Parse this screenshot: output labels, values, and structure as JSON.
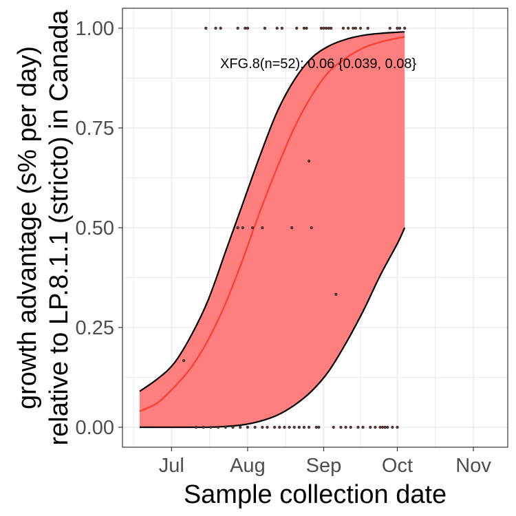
{
  "chart_data": {
    "type": "line",
    "xlabel": "Sample collection date",
    "ylabel_lines": [
      "growth advantage (s% per day)",
      "relative to LP.8.1.1 (stricto) in Canada"
    ],
    "annotation": "XFG.8(n=52): 0.06 {0.039, 0.08}",
    "x_ticks": [
      {
        "label": "Jul",
        "date": "2025-07-01"
      },
      {
        "label": "Aug",
        "date": "2025-08-01"
      },
      {
        "label": "Sep",
        "date": "2025-09-01"
      },
      {
        "label": "Oct",
        "date": "2025-10-01"
      },
      {
        "label": "Nov",
        "date": "2025-11-01"
      }
    ],
    "y_ticks": [
      {
        "label": "0.00",
        "value": 0
      },
      {
        "label": "0.25",
        "value": 0.25
      },
      {
        "label": "0.50",
        "value": 0.5
      },
      {
        "label": "0.75",
        "value": 0.75
      },
      {
        "label": "1.00",
        "value": 1
      }
    ],
    "xlim": [
      "2025-06-11",
      "2025-11-15"
    ],
    "ylim": [
      -0.05,
      1.05
    ],
    "grid": true,
    "colors": {
      "fit_line": "#ff3b30",
      "ribbon": "#ff7f7f",
      "bounds": "#000000",
      "points": "#5a3a3a",
      "panel_border": "#333333",
      "grid": "#ebebeb"
    },
    "series": [
      {
        "name": "XFG.8",
        "fit": [
          {
            "x": "2025-06-18",
            "y": 0.04
          },
          {
            "x": "2025-06-25",
            "y": 0.06
          },
          {
            "x": "2025-07-02",
            "y": 0.1
          },
          {
            "x": "2025-07-09",
            "y": 0.15
          },
          {
            "x": "2025-07-16",
            "y": 0.22
          },
          {
            "x": "2025-07-23",
            "y": 0.31
          },
          {
            "x": "2025-07-30",
            "y": 0.42
          },
          {
            "x": "2025-08-06",
            "y": 0.54
          },
          {
            "x": "2025-08-13",
            "y": 0.65
          },
          {
            "x": "2025-08-20",
            "y": 0.75
          },
          {
            "x": "2025-08-27",
            "y": 0.83
          },
          {
            "x": "2025-09-03",
            "y": 0.89
          },
          {
            "x": "2025-09-10",
            "y": 0.925
          },
          {
            "x": "2025-09-17",
            "y": 0.95
          },
          {
            "x": "2025-09-24",
            "y": 0.965
          },
          {
            "x": "2025-10-01",
            "y": 0.975
          },
          {
            "x": "2025-10-04",
            "y": 0.978
          }
        ],
        "upper": [
          {
            "x": "2025-06-18",
            "y": 0.09
          },
          {
            "x": "2025-06-25",
            "y": 0.12
          },
          {
            "x": "2025-07-02",
            "y": 0.16
          },
          {
            "x": "2025-07-09",
            "y": 0.23
          },
          {
            "x": "2025-07-16",
            "y": 0.32
          },
          {
            "x": "2025-07-23",
            "y": 0.44
          },
          {
            "x": "2025-07-30",
            "y": 0.56
          },
          {
            "x": "2025-08-06",
            "y": 0.68
          },
          {
            "x": "2025-08-13",
            "y": 0.79
          },
          {
            "x": "2025-08-20",
            "y": 0.87
          },
          {
            "x": "2025-08-27",
            "y": 0.925
          },
          {
            "x": "2025-09-03",
            "y": 0.955
          },
          {
            "x": "2025-09-10",
            "y": 0.972
          },
          {
            "x": "2025-09-17",
            "y": 0.982
          },
          {
            "x": "2025-09-24",
            "y": 0.987
          },
          {
            "x": "2025-10-01",
            "y": 0.99
          },
          {
            "x": "2025-10-04",
            "y": 0.991
          }
        ],
        "lower": [
          {
            "x": "2025-06-18",
            "y": 0.0
          },
          {
            "x": "2025-06-25",
            "y": 0.0
          },
          {
            "x": "2025-07-02",
            "y": 0.0
          },
          {
            "x": "2025-07-09",
            "y": 0.0
          },
          {
            "x": "2025-07-16",
            "y": 0.0
          },
          {
            "x": "2025-07-23",
            "y": 0.002
          },
          {
            "x": "2025-07-30",
            "y": 0.006
          },
          {
            "x": "2025-08-06",
            "y": 0.015
          },
          {
            "x": "2025-08-13",
            "y": 0.03
          },
          {
            "x": "2025-08-20",
            "y": 0.055
          },
          {
            "x": "2025-08-27",
            "y": 0.09
          },
          {
            "x": "2025-09-03",
            "y": 0.14
          },
          {
            "x": "2025-09-10",
            "y": 0.21
          },
          {
            "x": "2025-09-17",
            "y": 0.29
          },
          {
            "x": "2025-09-24",
            "y": 0.38
          },
          {
            "x": "2025-10-01",
            "y": 0.46
          },
          {
            "x": "2025-10-04",
            "y": 0.5
          }
        ],
        "observations": [
          {
            "x": "2025-07-06",
            "y": 0.167
          },
          {
            "x": "2025-07-28",
            "y": 0.5
          },
          {
            "x": "2025-07-30",
            "y": 0.5
          },
          {
            "x": "2025-08-03",
            "y": 0.5
          },
          {
            "x": "2025-08-07",
            "y": 0.5
          },
          {
            "x": "2025-08-19",
            "y": 0.5
          },
          {
            "x": "2025-08-27",
            "y": 0.5
          },
          {
            "x": "2025-08-26",
            "y": 0.667
          },
          {
            "x": "2025-09-06",
            "y": 0.333
          },
          {
            "x": "2025-07-15",
            "y": 1
          },
          {
            "x": "2025-07-19",
            "y": 1
          },
          {
            "x": "2025-07-21",
            "y": 1
          },
          {
            "x": "2025-07-28",
            "y": 1
          },
          {
            "x": "2025-07-31",
            "y": 1
          },
          {
            "x": "2025-08-01",
            "y": 1
          },
          {
            "x": "2025-08-08",
            "y": 1
          },
          {
            "x": "2025-08-13",
            "y": 1
          },
          {
            "x": "2025-08-15",
            "y": 1
          },
          {
            "x": "2025-08-21",
            "y": 1
          },
          {
            "x": "2025-08-24",
            "y": 1
          },
          {
            "x": "2025-08-25",
            "y": 1
          },
          {
            "x": "2025-08-31",
            "y": 1
          },
          {
            "x": "2025-09-01",
            "y": 1
          },
          {
            "x": "2025-09-02",
            "y": 1
          },
          {
            "x": "2025-09-03",
            "y": 1
          },
          {
            "x": "2025-09-04",
            "y": 1
          },
          {
            "x": "2025-09-09",
            "y": 1
          },
          {
            "x": "2025-09-11",
            "y": 1
          },
          {
            "x": "2025-09-13",
            "y": 1
          },
          {
            "x": "2025-09-14",
            "y": 1
          },
          {
            "x": "2025-09-16",
            "y": 1
          },
          {
            "x": "2025-09-19",
            "y": 1
          },
          {
            "x": "2025-09-28",
            "y": 1
          },
          {
            "x": "2025-10-01",
            "y": 1
          },
          {
            "x": "2025-10-02",
            "y": 1
          },
          {
            "x": "2025-10-04",
            "y": 1
          },
          {
            "x": "2025-07-11",
            "y": 0
          },
          {
            "x": "2025-07-14",
            "y": 0
          },
          {
            "x": "2025-07-17",
            "y": 0
          },
          {
            "x": "2025-07-20",
            "y": 0
          },
          {
            "x": "2025-07-23",
            "y": 0
          },
          {
            "x": "2025-07-26",
            "y": 0
          },
          {
            "x": "2025-07-29",
            "y": 0
          },
          {
            "x": "2025-08-01",
            "y": 0
          },
          {
            "x": "2025-08-04",
            "y": 0
          },
          {
            "x": "2025-08-07",
            "y": 0
          },
          {
            "x": "2025-08-09",
            "y": 0
          },
          {
            "x": "2025-08-12",
            "y": 0
          },
          {
            "x": "2025-08-14",
            "y": 0
          },
          {
            "x": "2025-08-16",
            "y": 0
          },
          {
            "x": "2025-08-18",
            "y": 0
          },
          {
            "x": "2025-08-20",
            "y": 0
          },
          {
            "x": "2025-08-22",
            "y": 0
          },
          {
            "x": "2025-08-24",
            "y": 0
          },
          {
            "x": "2025-08-26",
            "y": 0
          },
          {
            "x": "2025-08-29",
            "y": 0
          },
          {
            "x": "2025-08-30",
            "y": 0
          },
          {
            "x": "2025-09-05",
            "y": 0
          },
          {
            "x": "2025-09-08",
            "y": 0
          },
          {
            "x": "2025-09-10",
            "y": 0
          },
          {
            "x": "2025-09-12",
            "y": 0
          },
          {
            "x": "2025-09-15",
            "y": 0
          },
          {
            "x": "2025-09-17",
            "y": 0
          },
          {
            "x": "2025-09-20",
            "y": 0
          },
          {
            "x": "2025-09-22",
            "y": 0
          },
          {
            "x": "2025-09-24",
            "y": 0
          },
          {
            "x": "2025-09-25",
            "y": 0
          },
          {
            "x": "2025-09-26",
            "y": 0
          },
          {
            "x": "2025-09-27",
            "y": 0
          },
          {
            "x": "2025-09-29",
            "y": 0
          },
          {
            "x": "2025-10-01",
            "y": 0
          }
        ]
      }
    ]
  }
}
